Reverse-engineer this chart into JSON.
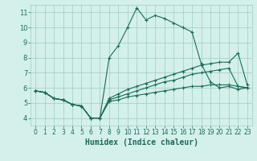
{
  "xlabel": "Humidex (Indice chaleur)",
  "x_ticks": [
    0,
    1,
    2,
    3,
    4,
    5,
    6,
    7,
    8,
    9,
    10,
    11,
    12,
    13,
    14,
    15,
    16,
    17,
    18,
    19,
    20,
    21,
    22,
    23
  ],
  "xlim": [
    -0.5,
    23.5
  ],
  "ylim": [
    3.5,
    11.5
  ],
  "y_ticks": [
    4,
    5,
    6,
    7,
    8,
    9,
    10,
    11
  ],
  "bg_color": "#d4f0ea",
  "grid_color": "#a0ccbf",
  "line_color": "#1a6b5a",
  "line1": [
    5.8,
    5.7,
    5.3,
    5.2,
    4.9,
    4.8,
    4.0,
    4.0,
    8.0,
    8.8,
    10.0,
    11.3,
    10.5,
    10.8,
    10.6,
    10.3,
    10.0,
    9.7,
    7.6,
    6.4,
    6.0,
    6.1,
    5.9,
    6.0
  ],
  "line2": [
    5.8,
    5.7,
    5.3,
    5.2,
    4.9,
    4.8,
    4.0,
    4.0,
    5.3,
    5.6,
    5.9,
    6.1,
    6.3,
    6.5,
    6.7,
    6.9,
    7.1,
    7.3,
    7.5,
    7.6,
    7.7,
    7.7,
    8.3,
    6.2
  ],
  "line3": [
    5.8,
    5.7,
    5.3,
    5.2,
    4.9,
    4.8,
    4.0,
    4.0,
    5.2,
    5.4,
    5.6,
    5.8,
    6.0,
    6.2,
    6.4,
    6.5,
    6.7,
    6.9,
    7.0,
    7.1,
    7.2,
    7.3,
    6.1,
    6.0
  ],
  "line4": [
    5.8,
    5.7,
    5.3,
    5.2,
    4.9,
    4.8,
    4.0,
    4.0,
    5.1,
    5.2,
    5.4,
    5.5,
    5.6,
    5.7,
    5.8,
    5.9,
    6.0,
    6.1,
    6.1,
    6.2,
    6.2,
    6.2,
    6.1,
    6.0
  ]
}
